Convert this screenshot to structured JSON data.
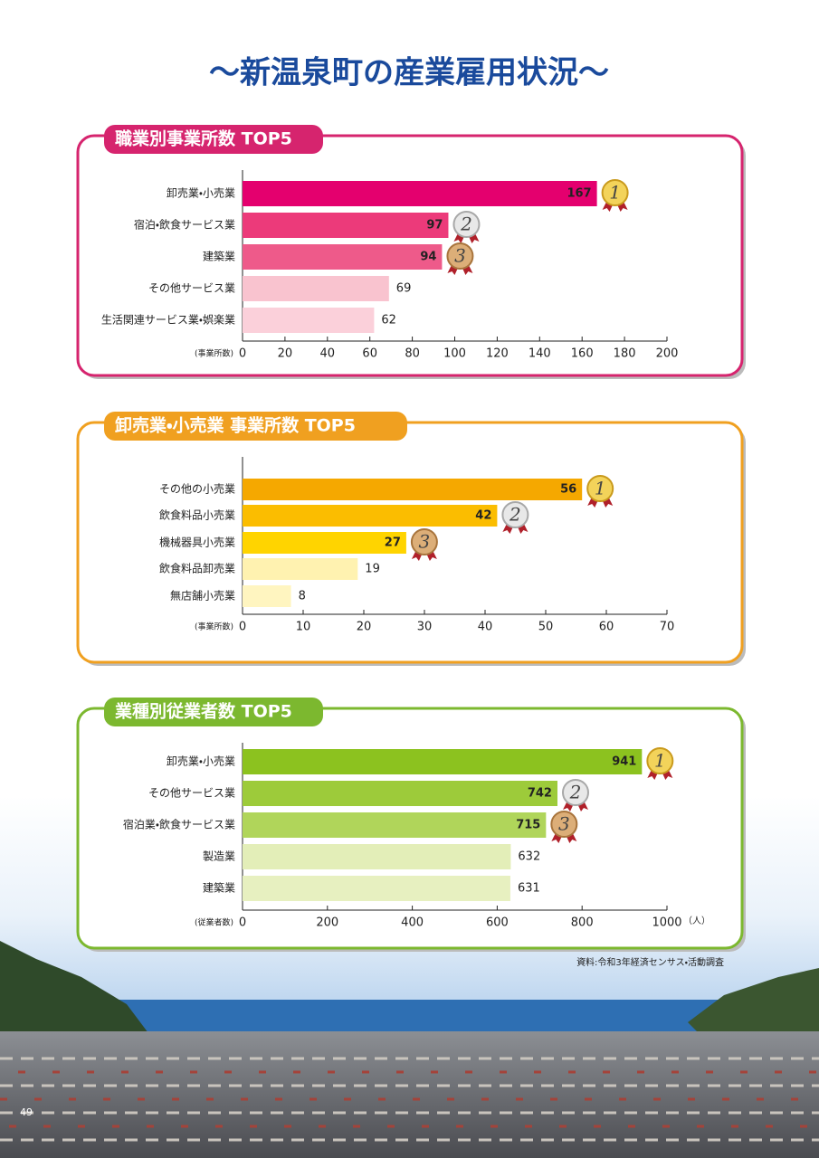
{
  "title": "～新温泉町の産業雇用状況～",
  "chart_data": [
    {
      "type": "barh",
      "title": "職業別事業所数 TOP5",
      "categories": [
        "卸売業・小売業",
        "宿泊・飲食サービス業",
        "建築業",
        "その他サービス業",
        "生活関連サービス業・娯楽業"
      ],
      "values": [
        167,
        97,
        94,
        69,
        62
      ],
      "colors": [
        "#e4006e",
        "#ec3a7a",
        "#ee5a8a",
        "#f9c3cf",
        "#fbd0da"
      ],
      "border_color": "#d6246e",
      "xlim": [
        0,
        200
      ],
      "xticks": [
        0,
        20,
        40,
        60,
        80,
        100,
        120,
        140,
        160,
        180,
        200
      ],
      "xlabel": "(事業所数)",
      "badges": [
        "1",
        "2",
        "3"
      ]
    },
    {
      "type": "barh",
      "title": "卸売業・小売業 事業所数 TOP5",
      "categories": [
        "その他の小売業",
        "飲食料品小売業",
        "機械器具小売業",
        "飲食料品卸売業",
        "無店舗小売業"
      ],
      "values": [
        56,
        42,
        27,
        19,
        8
      ],
      "colors": [
        "#f5a800",
        "#fbbd00",
        "#ffd400",
        "#fff2b0",
        "#fff5c0"
      ],
      "border_color": "#f0a020",
      "xlim": [
        0,
        70
      ],
      "xticks": [
        0,
        10,
        20,
        30,
        40,
        50,
        60,
        70
      ],
      "xlabel": "(事業所数)",
      "badges": [
        "1",
        "2",
        "3"
      ]
    },
    {
      "type": "barh",
      "title": "業種別従業者数 TOP5",
      "categories": [
        "卸売業・小売業",
        "その他サービス業",
        "宿泊業・飲食サービス業",
        "製造業",
        "建築業"
      ],
      "values": [
        941,
        742,
        715,
        632,
        631
      ],
      "colors": [
        "#8cc21f",
        "#9dcb3a",
        "#b0d55a",
        "#e3eeb8",
        "#e7f0c0"
      ],
      "border_color": "#7cb82f",
      "xlim": [
        0,
        1000
      ],
      "xticks": [
        0,
        200,
        400,
        600,
        800,
        1000
      ],
      "xlabel": "(従業者数)",
      "xunit": "（人）",
      "badges": [
        "1",
        "2",
        "3"
      ]
    }
  ],
  "source": "資料:令和3年経済センサス・活動調査",
  "page_number": "49"
}
